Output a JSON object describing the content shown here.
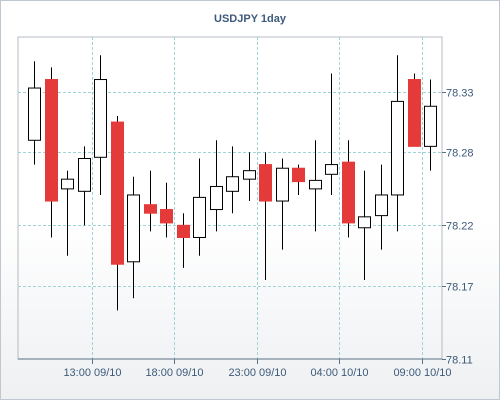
{
  "chart_data": {
    "type": "candlestick",
    "title": "USDJPY 1day",
    "xlabel": "",
    "ylabel": "",
    "ylim": [
      78.11,
      78.375
    ],
    "yticks": [
      78.11,
      78.17,
      78.22,
      78.28,
      78.33
    ],
    "ytick_labels": [
      "78.11",
      "78.17",
      "78.22",
      "78.28",
      "78.33"
    ],
    "xtick_labels": [
      "13:00 09/10",
      "18:00 09/10",
      "23:00 09/10",
      "04:00 10/10",
      "09:00 10/10"
    ],
    "xtick_candle_index": [
      3.5,
      8.5,
      13.5,
      18.5,
      23.5
    ],
    "grid": true,
    "up_color": "#ffffff",
    "down_color": "#e53a3a",
    "candles": [
      {
        "open": 78.29,
        "high": 78.355,
        "low": 78.27,
        "close": 78.333
      },
      {
        "open": 78.34,
        "high": 78.35,
        "low": 78.21,
        "close": 78.24
      },
      {
        "open": 78.25,
        "high": 78.265,
        "low": 78.195,
        "close": 78.258
      },
      {
        "open": 78.248,
        "high": 78.285,
        "low": 78.22,
        "close": 78.275
      },
      {
        "open": 78.276,
        "high": 78.36,
        "low": 78.245,
        "close": 78.34
      },
      {
        "open": 78.305,
        "high": 78.31,
        "low": 78.15,
        "close": 78.188
      },
      {
        "open": 78.19,
        "high": 78.26,
        "low": 78.16,
        "close": 78.245
      },
      {
        "open": 78.237,
        "high": 78.265,
        "low": 78.215,
        "close": 78.23
      },
      {
        "open": 78.233,
        "high": 78.255,
        "low": 78.21,
        "close": 78.222
      },
      {
        "open": 78.22,
        "high": 78.23,
        "low": 78.185,
        "close": 78.21
      },
      {
        "open": 78.21,
        "high": 78.275,
        "low": 78.195,
        "close": 78.243
      },
      {
        "open": 78.233,
        "high": 78.29,
        "low": 78.215,
        "close": 78.252
      },
      {
        "open": 78.248,
        "high": 78.285,
        "low": 78.23,
        "close": 78.26
      },
      {
        "open": 78.258,
        "high": 78.28,
        "low": 78.24,
        "close": 78.265
      },
      {
        "open": 78.27,
        "high": 78.28,
        "low": 78.175,
        "close": 78.24
      },
      {
        "open": 78.24,
        "high": 78.275,
        "low": 78.2,
        "close": 78.267
      },
      {
        "open": 78.267,
        "high": 78.27,
        "low": 78.245,
        "close": 78.256
      },
      {
        "open": 78.25,
        "high": 78.29,
        "low": 78.215,
        "close": 78.257
      },
      {
        "open": 78.262,
        "high": 78.345,
        "low": 78.245,
        "close": 78.27
      },
      {
        "open": 78.272,
        "high": 78.29,
        "low": 78.21,
        "close": 78.222
      },
      {
        "open": 78.218,
        "high": 78.265,
        "low": 78.175,
        "close": 78.227
      },
      {
        "open": 78.228,
        "high": 78.27,
        "low": 78.2,
        "close": 78.245
      },
      {
        "open": 78.245,
        "high": 78.36,
        "low": 78.215,
        "close": 78.322
      },
      {
        "open": 78.34,
        "high": 78.345,
        "low": 78.285,
        "close": 78.285
      },
      {
        "open": 78.285,
        "high": 78.34,
        "low": 78.265,
        "close": 78.318
      }
    ]
  }
}
